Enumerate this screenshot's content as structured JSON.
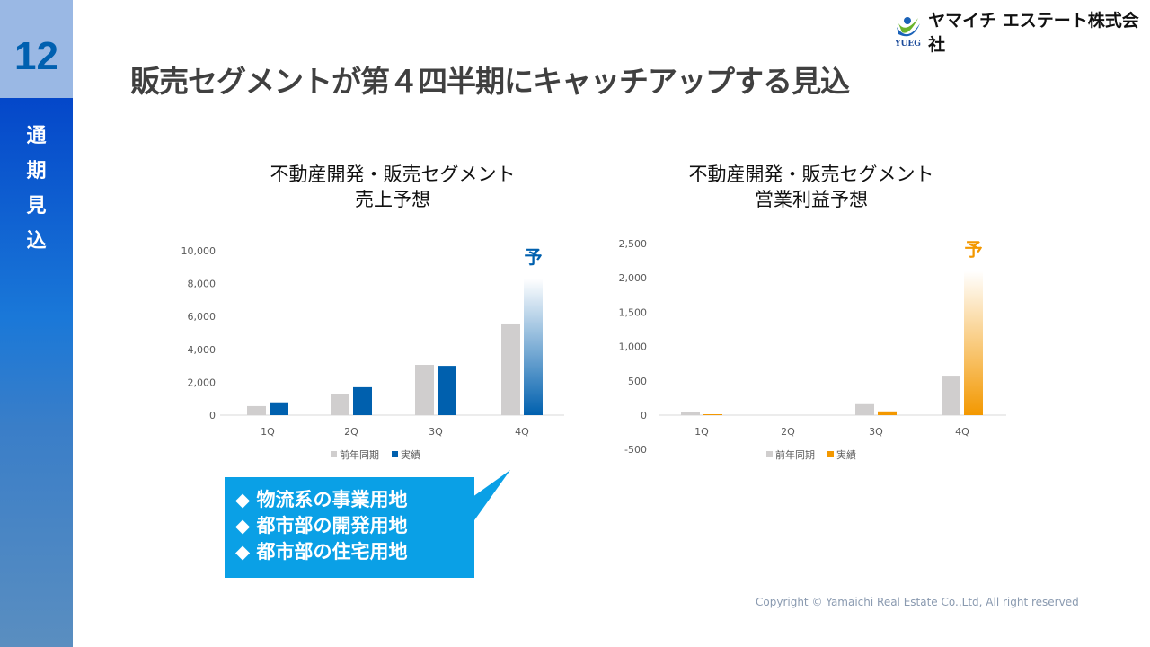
{
  "sidebar": {
    "page_number": "12",
    "section": [
      "通",
      "期",
      "見",
      "込"
    ]
  },
  "header": {
    "title": "販売セグメントが第４四半期にキャッチアップする見込",
    "company": "ヤマイチ エステート株式会社",
    "logo_sub": "YUEG"
  },
  "callout": {
    "items": [
      "◆ 物流系の事業用地",
      "◆ 都市部の開発用地",
      "◆ 都市部の住宅用地"
    ]
  },
  "footer": {
    "copyright": "Copyright © Yamaichi Real Estate Co.,Ltd, All right reserved"
  },
  "chart_data": [
    {
      "type": "bar",
      "title": [
        "不動産開発・販売セグメント",
        "売上予想"
      ],
      "categories": [
        "1Q",
        "2Q",
        "3Q",
        "4Q"
      ],
      "series": [
        {
          "name": "前年同期",
          "values": [
            550,
            1270,
            3060,
            5520
          ],
          "color": "#d0cece"
        },
        {
          "name": "実績",
          "values": [
            780,
            1700,
            3000,
            8300
          ],
          "color": "#0060ae"
        }
      ],
      "forecast_label": "予",
      "forecast_index": 3,
      "ylim": [
        0,
        10000
      ],
      "yticks": [
        0,
        2000,
        4000,
        6000,
        8000,
        10000
      ],
      "yticklabels": [
        "0",
        "2,000",
        "4,000",
        "6,000",
        "8,000",
        "10,000"
      ],
      "legend": "bottom",
      "grid": false
    },
    {
      "type": "bar",
      "title": [
        "不動産開発・販売セグメント",
        "営業利益予想"
      ],
      "categories": [
        "1Q",
        "2Q",
        "3Q",
        "4Q"
      ],
      "series": [
        {
          "name": "前年同期",
          "values": [
            50,
            0,
            160,
            575
          ],
          "color": "#d0cece"
        },
        {
          "name": "実績",
          "values": [
            13,
            0,
            55,
            2100
          ],
          "color": "#f39800"
        }
      ],
      "forecast_label": "予",
      "forecast_index": 3,
      "ylim": [
        -500,
        2500
      ],
      "yticks": [
        -500,
        0,
        500,
        1000,
        1500,
        2000,
        2500
      ],
      "yticklabels": [
        "-500",
        "0",
        "500",
        "1,000",
        "1,500",
        "2,000",
        "2,500"
      ],
      "legend": "bottom",
      "grid": false
    }
  ]
}
